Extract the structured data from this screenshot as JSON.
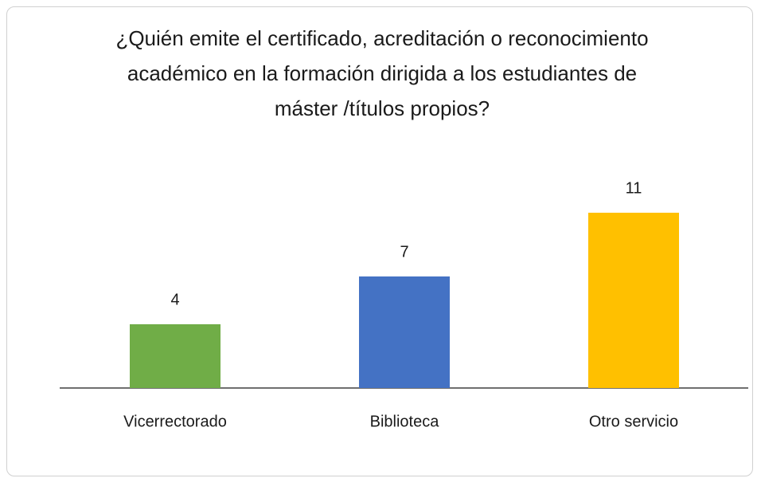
{
  "chart_data": {
    "type": "bar",
    "title": "¿Quién emite el certificado, acreditación o reconocimiento académico en la formación dirigida a los estudiantes de máster /títulos propios?",
    "categories": [
      "Vicerrectorado",
      "Biblioteca",
      "Otro servicio"
    ],
    "values": [
      4,
      7,
      11
    ],
    "colors": [
      "#70ad47",
      "#4472c4",
      "#ffc000"
    ]
  }
}
